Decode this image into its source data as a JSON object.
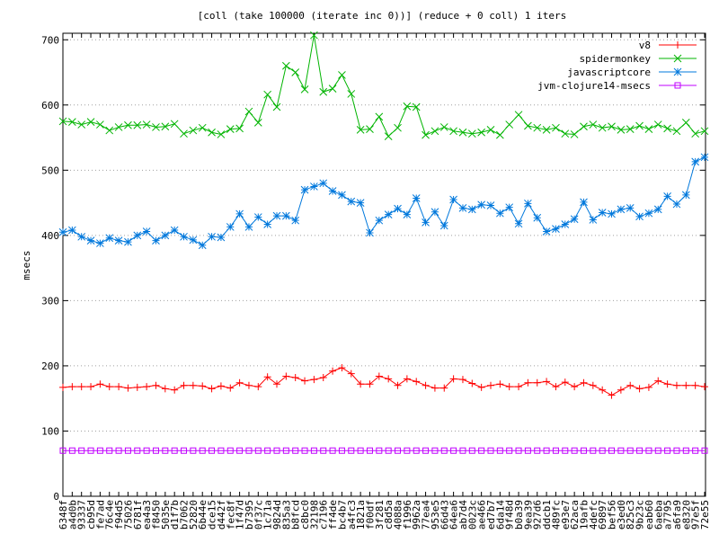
{
  "chart_data": {
    "type": "line",
    "title": "[coll (take 100000 (iterate inc 0))] (reduce + 0 coll) 1 iters",
    "xlabel": "",
    "ylabel": "msecs",
    "ylim": [
      0,
      710
    ],
    "yticks": [
      0,
      100,
      200,
      300,
      400,
      500,
      600,
      700
    ],
    "grid": true,
    "legend_position": "top-right",
    "categories": [
      "6348f",
      "a4d0b",
      "93337",
      "cb95d",
      "fe7ad",
      "76c4e",
      "f94d5",
      "75026",
      "6781f",
      "ea4a3",
      "f8450",
      "5035e",
      "d1f7b",
      "b7062",
      "52820",
      "6b44e",
      "dce15",
      "d442f",
      "fec8f",
      "1f47d",
      "b7395",
      "0f37c",
      "1c71a",
      "9824d",
      "835a3",
      "b8fcd",
      "c8bc0",
      "32198",
      "c7196",
      "ff4de",
      "bc4b7",
      "a4fc3",
      "1821a",
      "f00df",
      "3f281",
      "c8d5a",
      "4088a",
      "f1996",
      "9962a",
      "77ea4",
      "953e5",
      "66d43",
      "64ea6",
      "ab7d4",
      "0023c",
      "ae466",
      "ed7b7",
      "6da14",
      "9f48d",
      "b0a39",
      "9ea39",
      "927d6",
      "ddcb1",
      "489fc",
      "e93e7",
      "62aca",
      "19afb",
      "4defc",
      "69897",
      "bef56",
      "e3ed0",
      "825c3",
      "9b23c",
      "eab60",
      "6aeba",
      "a7795",
      "a6fa9",
      "e8320",
      "97e5f",
      "72e55"
    ],
    "series": [
      {
        "name": "v8",
        "color": "#ff0000",
        "marker": "plus",
        "values": [
          167,
          168,
          168,
          168,
          172,
          168,
          168,
          166,
          167,
          168,
          170,
          165,
          163,
          170,
          170,
          169,
          165,
          169,
          166,
          174,
          170,
          168,
          183,
          172,
          184,
          182,
          177,
          179,
          182,
          192,
          197,
          188,
          172,
          172,
          184,
          180,
          170,
          180,
          176,
          170,
          166,
          166,
          180,
          179,
          173,
          167,
          170,
          172,
          168,
          168,
          174,
          174,
          176,
          168,
          175,
          168,
          174,
          170,
          163,
          155,
          163,
          170,
          165,
          167,
          177,
          172,
          170,
          170,
          170,
          168
        ]
      },
      {
        "name": "spidermonkey",
        "color": "#00b400",
        "marker": "cross",
        "values": [
          575,
          574,
          570,
          574,
          570,
          561,
          566,
          569,
          569,
          570,
          566,
          567,
          571,
          556,
          561,
          565,
          558,
          555,
          563,
          564,
          590,
          573,
          616,
          597,
          660,
          650,
          624,
          707,
          620,
          625,
          646,
          617,
          562,
          563,
          582,
          552,
          565,
          598,
          597,
          554,
          560,
          566,
          560,
          558,
          556,
          558,
          562,
          554,
          570,
          585,
          568,
          565,
          562,
          565,
          556,
          555,
          567,
          570,
          565,
          567,
          562,
          563,
          568,
          563,
          570,
          564,
          560,
          573,
          556,
          560
        ]
      },
      {
        "name": "javascriptcore",
        "color": "#0078dc",
        "marker": "star",
        "values": [
          405,
          408,
          398,
          392,
          388,
          396,
          392,
          390,
          400,
          406,
          392,
          400,
          408,
          398,
          393,
          385,
          398,
          397,
          413,
          433,
          413,
          428,
          417,
          430,
          430,
          423,
          470,
          475,
          480,
          468,
          462,
          452,
          450,
          404,
          423,
          432,
          441,
          432,
          457,
          420,
          436,
          415,
          455,
          442,
          440,
          447,
          446,
          434,
          443,
          418,
          449,
          427,
          406,
          410,
          417,
          425,
          451,
          424,
          435,
          433,
          440,
          442,
          429,
          434,
          440,
          460,
          448,
          462,
          513,
          520
        ]
      },
      {
        "name": "jvm-clojure14-msecs",
        "color": "#c000ff",
        "marker": "box",
        "values": [
          70,
          70,
          70,
          70,
          70,
          70,
          70,
          70,
          70,
          70,
          70,
          70,
          70,
          70,
          70,
          70,
          70,
          70,
          70,
          70,
          70,
          70,
          70,
          70,
          70,
          70,
          70,
          70,
          70,
          70,
          70,
          70,
          70,
          70,
          70,
          70,
          70,
          70,
          70,
          70,
          70,
          70,
          70,
          70,
          70,
          70,
          70,
          70,
          70,
          70,
          70,
          70,
          70,
          70,
          70,
          70,
          70,
          70,
          70,
          70,
          70,
          70,
          70,
          70,
          70,
          70,
          70,
          70,
          70,
          70
        ]
      }
    ]
  }
}
